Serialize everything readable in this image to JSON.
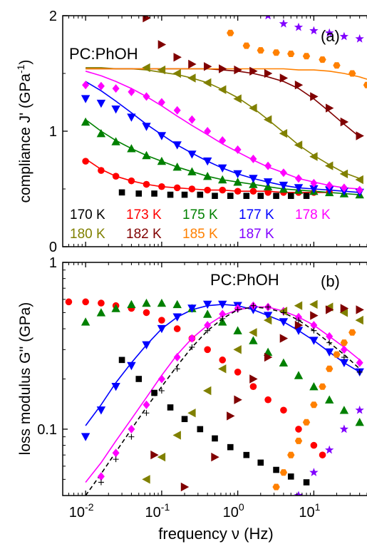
{
  "chart_data": [
    {
      "type": "scatter",
      "panel_label": "(a)",
      "annotation": "PC:PhOH",
      "ylabel": "compliance J' (GPa",
      "ylabel_sup": "-1",
      "ylabel_close": ")",
      "xscale": "log",
      "xlim": [
        0.005,
        50
      ],
      "ylim": [
        0,
        2
      ],
      "yticks": [
        "0",
        "1",
        "2"
      ],
      "legend_rows": [
        [
          "170 K",
          "173 K",
          "175 K",
          "177 K",
          "178 K"
        ],
        [
          "180 K",
          "182 K",
          "185 K",
          "187 K"
        ]
      ],
      "series": [
        {
          "name": "170 K",
          "color": "#000000",
          "marker": "square",
          "x": [
            0.03,
            0.05,
            0.08,
            0.13,
            0.2,
            0.32,
            0.5,
            0.8,
            1.3,
            2,
            3.2,
            5,
            8
          ],
          "y": [
            0.47,
            0.46,
            0.46,
            0.45,
            0.45,
            0.45,
            0.44,
            0.44,
            0.44,
            0.44,
            0.44,
            0.44,
            0.44
          ]
        },
        {
          "name": "173 K",
          "color": "#ff0000",
          "marker": "circle",
          "x": [
            0.01,
            0.016,
            0.025,
            0.04,
            0.063,
            0.1,
            0.16,
            0.25,
            0.4,
            0.63,
            1,
            1.6,
            2.5,
            4,
            6.3,
            10,
            16
          ],
          "y": [
            0.74,
            0.66,
            0.61,
            0.57,
            0.54,
            0.52,
            0.51,
            0.5,
            0.49,
            0.49,
            0.48,
            0.48,
            0.47,
            0.47,
            0.47,
            0.47,
            0.47
          ],
          "fit_y": [
            0.76,
            0.67,
            0.61,
            0.57,
            0.54,
            0.52,
            0.51,
            0.5,
            0.49,
            0.49,
            0.48,
            0.48,
            0.48,
            0.47,
            0.47,
            0.47,
            0.47
          ]
        },
        {
          "name": "175 K",
          "color": "#008000",
          "marker": "triangle-up",
          "x": [
            0.01,
            0.016,
            0.025,
            0.04,
            0.063,
            0.1,
            0.16,
            0.25,
            0.4,
            0.63,
            1,
            1.6,
            2.5,
            4,
            6.3,
            10,
            16,
            25,
            40
          ],
          "y": [
            1.08,
            0.98,
            0.91,
            0.85,
            0.79,
            0.74,
            0.69,
            0.65,
            0.61,
            0.58,
            0.56,
            0.54,
            0.52,
            0.5,
            0.49,
            0.48,
            0.47,
            0.46,
            0.45
          ],
          "fit_y": [
            1.1,
            1.0,
            0.92,
            0.85,
            0.79,
            0.74,
            0.69,
            0.65,
            0.61,
            0.58,
            0.56,
            0.54,
            0.52,
            0.5,
            0.49,
            0.48,
            0.47,
            0.46,
            0.45
          ]
        },
        {
          "name": "177 K",
          "color": "#0000ff",
          "marker": "triangle-down",
          "x": [
            0.01,
            0.016,
            0.025,
            0.04,
            0.063,
            0.1,
            0.16,
            0.25,
            0.4,
            0.63,
            1,
            1.6,
            2.5,
            4,
            6.3,
            10,
            16,
            25,
            40
          ],
          "y": [
            1.28,
            1.24,
            1.19,
            1.12,
            1.04,
            0.96,
            0.88,
            0.8,
            0.74,
            0.68,
            0.63,
            0.59,
            0.56,
            0.53,
            0.51,
            0.5,
            0.49,
            0.48,
            0.47
          ],
          "fit_y": [
            1.43,
            1.35,
            1.26,
            1.16,
            1.06,
            0.97,
            0.88,
            0.81,
            0.74,
            0.68,
            0.63,
            0.59,
            0.56,
            0.53,
            0.51,
            0.5,
            0.49,
            0.48,
            0.47
          ]
        },
        {
          "name": "178 K",
          "color": "#ff00ff",
          "marker": "diamond",
          "x": [
            0.01,
            0.016,
            0.025,
            0.04,
            0.063,
            0.1,
            0.16,
            0.25,
            0.4,
            0.63,
            1,
            1.6,
            2.5,
            4,
            6.3,
            10,
            16,
            25,
            40
          ],
          "y": [
            1.4,
            1.39,
            1.37,
            1.34,
            1.3,
            1.25,
            1.18,
            1.1,
            1.0,
            0.92,
            0.84,
            0.76,
            0.7,
            0.64,
            0.59,
            0.55,
            0.53,
            0.51,
            0.49
          ],
          "fit_y": [
            1.52,
            1.48,
            1.43,
            1.37,
            1.3,
            1.22,
            1.13,
            1.05,
            0.97,
            0.89,
            0.82,
            0.75,
            0.69,
            0.64,
            0.59,
            0.56,
            0.53,
            0.51,
            0.5
          ]
        },
        {
          "name": "180 K",
          "color": "#808000",
          "marker": "triangle-left",
          "x": [
            0.063,
            0.1,
            0.16,
            0.25,
            0.4,
            0.63,
            1,
            1.6,
            2.5,
            4,
            6.3,
            10,
            16,
            25,
            40
          ],
          "y": [
            1.55,
            1.53,
            1.5,
            1.46,
            1.42,
            1.36,
            1.28,
            1.2,
            1.1,
            0.98,
            0.88,
            0.78,
            0.7,
            0.63,
            0.58
          ],
          "fit_x": [
            0.01,
            0.016,
            0.025,
            0.04,
            0.063,
            0.1,
            0.16,
            0.25,
            0.4,
            0.63,
            1,
            1.6,
            2.5,
            4,
            6.3,
            10,
            16,
            25,
            40
          ],
          "fit_y": [
            1.55,
            1.55,
            1.54,
            1.54,
            1.53,
            1.51,
            1.49,
            1.46,
            1.42,
            1.36,
            1.29,
            1.2,
            1.1,
            0.99,
            0.88,
            0.79,
            0.71,
            0.64,
            0.59
          ]
        },
        {
          "name": "182 K",
          "color": "#800000",
          "marker": "triangle-right",
          "x": [
            0.063,
            0.1,
            0.16,
            0.25,
            0.4,
            0.63,
            1,
            1.6,
            2.5,
            4,
            6.3,
            10,
            16,
            25,
            40
          ],
          "y": [
            1.98,
            1.75,
            1.64,
            1.58,
            1.56,
            1.54,
            1.53,
            1.52,
            1.5,
            1.46,
            1.4,
            1.3,
            1.2,
            1.08,
            0.96
          ],
          "fit_x": [
            0.01,
            0.016,
            0.025,
            0.04,
            0.063,
            0.1,
            0.16,
            0.25,
            0.4,
            0.63,
            1,
            1.6,
            2.5,
            4,
            6.3,
            10,
            16,
            25,
            40
          ],
          "fit_y": [
            1.54,
            1.54,
            1.54,
            1.54,
            1.54,
            1.54,
            1.54,
            1.54,
            1.54,
            1.53,
            1.52,
            1.5,
            1.47,
            1.43,
            1.37,
            1.28,
            1.17,
            1.06,
            0.95
          ]
        },
        {
          "name": "185 K",
          "color": "#ff8000",
          "marker": "hexagon",
          "x": [
            0.8,
            1.3,
            2,
            3.2,
            5,
            8,
            13,
            20,
            32,
            50
          ],
          "y": [
            1.85,
            1.74,
            1.7,
            1.68,
            1.67,
            1.65,
            1.62,
            1.57,
            1.5,
            1.4
          ],
          "fit_x": [
            0.01,
            0.016,
            0.025,
            0.04,
            0.063,
            0.1,
            0.16,
            0.25,
            0.4,
            0.63,
            1,
            1.6,
            2.5,
            4,
            6.3,
            10,
            16,
            25,
            40,
            50
          ],
          "fit_y": [
            1.54,
            1.54,
            1.54,
            1.54,
            1.54,
            1.54,
            1.54,
            1.54,
            1.54,
            1.54,
            1.54,
            1.54,
            1.54,
            1.54,
            1.53,
            1.53,
            1.52,
            1.5,
            1.47,
            1.45
          ]
        },
        {
          "name": "187 K",
          "color": "#8000ff",
          "marker": "star",
          "x": [
            2.5,
            4,
            6.3,
            10,
            16,
            25,
            40
          ],
          "y": [
            2.0,
            1.93,
            1.9,
            1.87,
            1.85,
            1.82,
            1.8
          ]
        }
      ]
    },
    {
      "type": "scatter",
      "panel_label": "(b)",
      "annotation": "PC:PhOH",
      "xlabel": "frequency ν (Hz)",
      "ylabel": "loss modulus G'' (GPa)",
      "xscale": "log",
      "yscale": "log",
      "xlim": [
        0.005,
        50
      ],
      "ylim": [
        0.04,
        1
      ],
      "xticks": [
        {
          "value": 0.01,
          "base": "10",
          "exp": "-2"
        },
        {
          "value": 0.1,
          "base": "10",
          "exp": "-1"
        },
        {
          "value": 1,
          "base": "10",
          "exp": "0"
        },
        {
          "value": 10,
          "base": "10",
          "exp": "1"
        }
      ],
      "yticks": [
        "0.1",
        "1"
      ],
      "series": [
        {
          "name": "170 K",
          "color": "#000000",
          "marker": "square",
          "x": [
            0.03,
            0.05,
            0.08,
            0.13,
            0.2,
            0.32,
            0.5,
            0.8,
            1.3,
            2,
            3.2,
            5,
            8
          ],
          "y": [
            0.26,
            0.2,
            0.165,
            0.135,
            0.115,
            0.1,
            0.088,
            0.078,
            0.07,
            0.063,
            0.057,
            0.052,
            0.048
          ]
        },
        {
          "name": "173 K",
          "color": "#ff0000",
          "marker": "circle",
          "x": [
            0.006,
            0.01,
            0.016,
            0.025,
            0.04,
            0.063,
            0.1,
            0.16,
            0.25,
            0.4,
            0.63,
            1,
            1.6,
            2.5,
            4,
            6.3,
            10,
            13
          ],
          "y": [
            0.58,
            0.58,
            0.57,
            0.55,
            0.53,
            0.5,
            0.45,
            0.4,
            0.35,
            0.3,
            0.26,
            0.22,
            0.18,
            0.15,
            0.13,
            0.1,
            0.08,
            0.07
          ]
        },
        {
          "name": "175 K",
          "color": "#008000",
          "marker": "triangle-up",
          "x": [
            0.01,
            0.016,
            0.025,
            0.04,
            0.063,
            0.1,
            0.16,
            0.25,
            0.4,
            0.63,
            1,
            1.6,
            2.5,
            4,
            6.3,
            10,
            16,
            25,
            40
          ],
          "y": [
            0.44,
            0.5,
            0.53,
            0.56,
            0.57,
            0.57,
            0.56,
            0.53,
            0.49,
            0.44,
            0.39,
            0.34,
            0.29,
            0.25,
            0.21,
            0.18,
            0.15,
            0.13,
            0.11
          ]
        },
        {
          "name": "177 K",
          "color": "#0000ff",
          "marker": "triangle-down",
          "x": [
            0.01,
            0.016,
            0.025,
            0.04,
            0.063,
            0.1,
            0.16,
            0.25,
            0.4,
            0.63,
            1,
            1.6,
            2.5,
            4,
            6.3,
            10,
            16,
            25,
            40
          ],
          "y": [
            0.09,
            0.13,
            0.18,
            0.24,
            0.32,
            0.4,
            0.47,
            0.53,
            0.56,
            0.56,
            0.55,
            0.52,
            0.48,
            0.44,
            0.39,
            0.34,
            0.29,
            0.25,
            0.22
          ],
          "fit_y": [
            0.105,
            0.14,
            0.19,
            0.25,
            0.32,
            0.4,
            0.47,
            0.52,
            0.55,
            0.56,
            0.55,
            0.52,
            0.48,
            0.44,
            0.39,
            0.34,
            0.29,
            0.25,
            0.22
          ]
        },
        {
          "name": "178 K",
          "color": "#ff00ff",
          "marker": "diamond",
          "x": [
            0.01,
            0.016,
            0.025,
            0.04,
            0.063,
            0.1,
            0.16,
            0.25,
            0.4,
            0.63,
            1,
            1.6,
            2.5,
            4,
            6.3,
            10,
            16,
            25,
            40
          ],
          "y": [
            0.038,
            0.052,
            0.072,
            0.1,
            0.14,
            0.2,
            0.27,
            0.35,
            0.42,
            0.49,
            0.53,
            0.55,
            0.54,
            0.51,
            0.47,
            0.42,
            0.36,
            0.3,
            0.25
          ],
          "fit_y": [
            0.048,
            0.063,
            0.085,
            0.115,
            0.155,
            0.21,
            0.28,
            0.35,
            0.42,
            0.48,
            0.52,
            0.54,
            0.54,
            0.51,
            0.47,
            0.42,
            0.36,
            0.31,
            0.26
          ]
        },
        {
          "name": "180 K",
          "color": "#808000",
          "marker": "triangle-left",
          "x": [
            0.04,
            0.063,
            0.1,
            0.16,
            0.25,
            0.4,
            0.63,
            1,
            1.6,
            2.5,
            4,
            6.3,
            10,
            16,
            25,
            40
          ],
          "y": [
            0.038,
            0.05,
            0.068,
            0.092,
            0.125,
            0.17,
            0.23,
            0.3,
            0.38,
            0.45,
            0.51,
            0.55,
            0.56,
            0.54,
            0.5,
            0.45
          ]
        },
        {
          "name": "182 K",
          "color": "#800000",
          "marker": "triangle-right",
          "x": [
            0.08,
            0.2,
            0.5,
            0.8,
            1,
            1.6,
            2.5,
            4,
            6.3,
            10,
            16,
            25,
            40
          ],
          "y": [
            0.07,
            0.045,
            0.068,
            0.12,
            0.15,
            0.2,
            0.27,
            0.35,
            0.42,
            0.48,
            0.52,
            0.53,
            0.52
          ]
        },
        {
          "name": "185 K",
          "color": "#ff8000",
          "marker": "hexagon",
          "x": [
            2.5,
            3.2,
            4,
            5,
            6.3,
            8,
            10,
            13,
            16,
            20,
            25,
            32
          ],
          "y": [
            0.038,
            0.045,
            0.055,
            0.07,
            0.085,
            0.11,
            0.14,
            0.18,
            0.23,
            0.28,
            0.33,
            0.38
          ]
        },
        {
          "name": "187 K",
          "color": "#8000ff",
          "marker": "star",
          "x": [
            6.3,
            10,
            16,
            25,
            40
          ],
          "y": [
            0.04,
            0.055,
            0.075,
            0.1,
            0.13
          ]
        },
        {
          "name": "",
          "color": "#000000",
          "marker": "plus",
          "x": [
            0.01,
            0.016,
            0.025,
            0.04,
            0.063,
            0.1,
            0.16,
            0.25,
            0.4,
            0.63,
            1,
            1.6,
            2.5,
            4,
            6.3,
            10,
            16,
            25,
            40
          ],
          "y": [
            0.036,
            0.048,
            0.066,
            0.09,
            0.125,
            0.17,
            0.23,
            0.31,
            0.39,
            0.46,
            0.52,
            0.55,
            0.54,
            0.5,
            0.45,
            0.39,
            0.33,
            0.27,
            0.22
          ],
          "fit_y": [
            0.04,
            0.054,
            0.073,
            0.1,
            0.135,
            0.18,
            0.24,
            0.31,
            0.39,
            0.46,
            0.52,
            0.54,
            0.53,
            0.5,
            0.45,
            0.39,
            0.33,
            0.28,
            0.23
          ],
          "fit_style": "dashed"
        }
      ]
    }
  ]
}
